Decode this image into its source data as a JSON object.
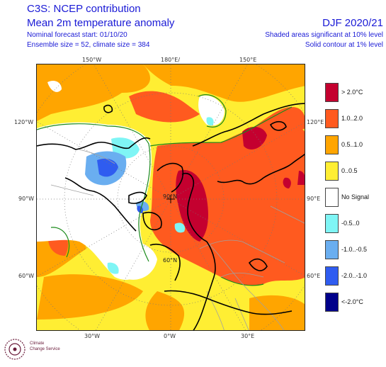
{
  "header": {
    "title_line1": "C3S: NCEP contribution",
    "title_line2": "Mean 2m temperature anomaly",
    "forecast_start": "Nominal forecast start: 01/10/20",
    "ensemble": "Ensemble size = 52, climate size = 384",
    "season": "DJF 2020/21",
    "shading_note": "Shaded areas significant at 10% level",
    "contour_note": "Solid contour at 1% level"
  },
  "map": {
    "projection": "polar stereographic (north pole)",
    "longitude_labels": {
      "top_150w": "150°W",
      "top_180": "180°E/",
      "top_150e": "150°E",
      "left_120w": "120°W",
      "right_120e": "120°E",
      "left_90w": "90°W",
      "right_90e": "90°E",
      "left_60w": "60°W",
      "right_60e": "60°E",
      "bottom_30w": "30°W",
      "bottom_0w": "0°W",
      "bottom_30e": "30°E"
    },
    "latitude_labels": {
      "lat_90n": "90°N",
      "lat_60n": "60°N"
    }
  },
  "legend": {
    "items": [
      {
        "label": "> 2.0°C",
        "color": "#c4002f"
      },
      {
        "label": "1.0..2.0",
        "color": "#ff5a1f"
      },
      {
        "label": "0.5..1.0",
        "color": "#ffa500"
      },
      {
        "label": "0..0.5",
        "color": "#ffee33"
      },
      {
        "label": "No Signal",
        "color": "#ffffff"
      },
      {
        "label": "-0.5..0",
        "color": "#7ff5f5"
      },
      {
        "label": "-1.0..-0.5",
        "color": "#6aaef0"
      },
      {
        "label": "-2.0..-1.0",
        "color": "#2f5cf0"
      },
      {
        "label": "<-2.0°C",
        "color": "#00008a"
      }
    ]
  },
  "logo": {
    "line1": "Climate",
    "line2": "Change Service"
  },
  "colors": {
    "header_text": "#1a1ad6",
    "significance_contour": "#1a8a1a",
    "coastline": "#000000",
    "borders": "#a0a0a0"
  }
}
